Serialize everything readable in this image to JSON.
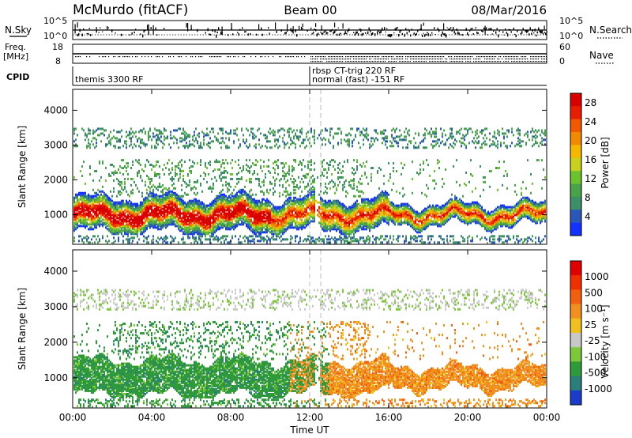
{
  "header": {
    "title_left": "McMurdo (fitACF)",
    "title_center": "Beam 00",
    "title_right": "08/Mar/2016"
  },
  "top_panel": {
    "nsky_label": "N.Sky",
    "nsky_ticks": [
      "10^5",
      "10^0"
    ],
    "nsearch_label": "N.Search",
    "nsearch_ticks": [
      "10^5",
      "10^0"
    ],
    "freq_label": "Freq.",
    "freq_unit": "[MHz]",
    "freq_ticks": [
      "18",
      "8"
    ],
    "nave_label": "Nave",
    "nave_ticks": [
      "60",
      "0"
    ],
    "cpid_label": "CPID",
    "cpid_programs": [
      {
        "text": "themis 3300 RF",
        "start_hour": 0,
        "line": 1
      },
      {
        "text": "rbsp CT-trig 220 RF",
        "start_hour": 12,
        "line": 0
      },
      {
        "text": "normal (fast) -151 RF",
        "start_hour": 12,
        "line": 1
      }
    ],
    "program_change_hour": 12
  },
  "chart_data": [
    {
      "type": "heatmap",
      "name": "power",
      "ylabel": "Slant Range [km]",
      "xlabel": "Time UT",
      "ylim": [
        150,
        4600
      ],
      "y_ticks": [
        "1000",
        "2000",
        "3000",
        "4000"
      ],
      "x_ticks": [
        "00:00",
        "04:00",
        "08:00",
        "12:00",
        "16:00",
        "20:00",
        "00:00"
      ],
      "xlim_hours": [
        0,
        24
      ],
      "colorbar_label": "Power [dB]",
      "colorbar_ticks": [
        "4",
        "8",
        "12",
        "16",
        "20",
        "24",
        "28"
      ],
      "colorbar_range": [
        0,
        30
      ],
      "colorbar_colors": [
        "#1432ff",
        "#2a57b8",
        "#3d8f6a",
        "#4aa24a",
        "#6cc12e",
        "#c8d21e",
        "#f5b800",
        "#f08a00",
        "#ef5a00",
        "#e81e00",
        "#d80000"
      ]
    },
    {
      "type": "heatmap",
      "name": "velocity",
      "ylabel": "Slant Range [km]",
      "xlabel": "Time UT",
      "ylim": [
        150,
        4600
      ],
      "y_ticks": [
        "1000",
        "2000",
        "3000",
        "4000"
      ],
      "x_ticks": [
        "00:00",
        "04:00",
        "08:00",
        "12:00",
        "16:00",
        "20:00",
        "00:00"
      ],
      "xlim_hours": [
        0,
        24
      ],
      "colorbar_label": "Velocity [m s⁻¹]",
      "colorbar_ticks": [
        "1000",
        "500",
        "100",
        "25",
        "-25",
        "-100",
        "-500",
        "-1000"
      ],
      "colorbar_colors": [
        "#1a3cc8",
        "#2b7f7a",
        "#2f9a3a",
        "#7cc83a",
        "#c8c8c8",
        "#f0c020",
        "#f09020",
        "#f06010",
        "#f03000",
        "#e00000"
      ]
    }
  ]
}
